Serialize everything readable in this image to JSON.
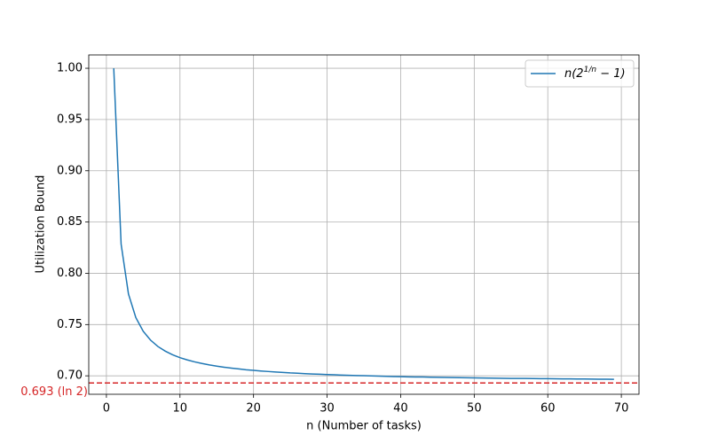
{
  "chart_data": {
    "type": "line",
    "xlabel": "n (Number of tasks)",
    "ylabel": "Utilization Bound",
    "x": [
      1,
      2,
      3,
      4,
      5,
      6,
      7,
      8,
      9,
      10,
      11,
      12,
      13,
      14,
      15,
      16,
      17,
      18,
      19,
      20,
      21,
      22,
      23,
      24,
      25,
      26,
      27,
      28,
      29,
      30,
      31,
      32,
      33,
      34,
      35,
      36,
      37,
      38,
      39,
      40,
      41,
      42,
      43,
      44,
      45,
      46,
      47,
      48,
      49,
      50,
      51,
      52,
      53,
      54,
      55,
      56,
      57,
      58,
      59,
      60,
      61,
      62,
      63,
      64,
      65,
      66,
      67,
      68,
      69
    ],
    "series": [
      {
        "name": "n(2^{1/n} − 1)",
        "color": "#1f77b4",
        "values": [
          1.0,
          0.8284,
          0.7798,
          0.7568,
          0.7435,
          0.7348,
          0.7286,
          0.7241,
          0.7205,
          0.7177,
          0.7155,
          0.7136,
          0.712,
          0.7106,
          0.7094,
          0.7084,
          0.7075,
          0.7067,
          0.7059,
          0.7053,
          0.7047,
          0.7042,
          0.7037,
          0.7033,
          0.7028,
          0.7025,
          0.7021,
          0.7018,
          0.7015,
          0.7012,
          0.701,
          0.7007,
          0.7005,
          0.7003,
          0.7001,
          0.6999,
          0.6997,
          0.6995,
          0.6993,
          0.6992,
          0.699,
          0.6989,
          0.6988,
          0.6986,
          0.6985,
          0.6984,
          0.6983,
          0.6982,
          0.6981,
          0.698,
          0.6979,
          0.6978,
          0.6977,
          0.6976,
          0.6975,
          0.6975,
          0.6974,
          0.6973,
          0.6972,
          0.6972,
          0.6971,
          0.697,
          0.697,
          0.6969,
          0.6969,
          0.6968,
          0.6967,
          0.6967,
          0.6966
        ]
      }
    ],
    "hline": {
      "value": 0.693,
      "label": "0.693 (ln 2)",
      "color": "#d62728"
    },
    "xlim": [
      -2.4,
      72.4
    ],
    "ylim": [
      0.682,
      1.013
    ],
    "xticks": [
      0,
      10,
      20,
      30,
      40,
      50,
      60,
      70
    ],
    "yticks": [
      {
        "value": 0.7,
        "label": "0.70"
      },
      {
        "value": 0.75,
        "label": "0.75"
      },
      {
        "value": 0.8,
        "label": "0.80"
      },
      {
        "value": 0.85,
        "label": "0.85"
      },
      {
        "value": 0.9,
        "label": "0.90"
      },
      {
        "value": 0.95,
        "label": "0.95"
      },
      {
        "value": 1.0,
        "label": "1.00"
      }
    ],
    "grid": true,
    "legend": "upper right"
  }
}
